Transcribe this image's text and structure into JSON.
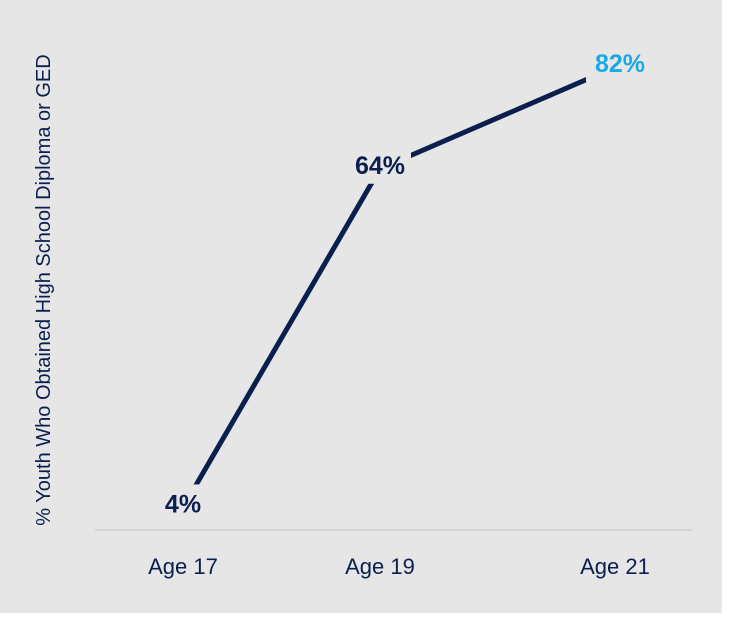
{
  "chart_data": {
    "type": "line",
    "categories": [
      "Age 17",
      "Age 19",
      "Age 21"
    ],
    "series": [
      {
        "values": [
          4,
          64,
          82
        ],
        "data_labels": [
          "4%",
          "64%",
          "82%"
        ]
      }
    ],
    "title": "",
    "xlabel": "",
    "ylabel": "% Youth Who Obtained High School Diploma or GED",
    "ylim": [
      0,
      90
    ],
    "grid": false,
    "legend": "none",
    "colors": {
      "background": "#e6e6e6",
      "line": "#0b1f4f",
      "label": "#0b1f4f",
      "highlight_label": "#1ba9e8",
      "baseline": "#cfcfcf"
    }
  }
}
